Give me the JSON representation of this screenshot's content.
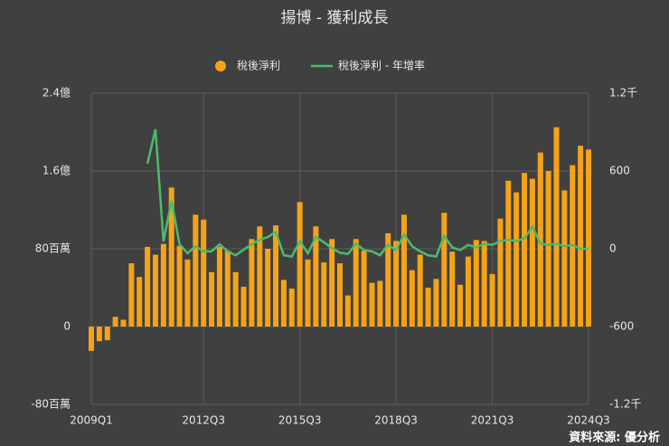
{
  "chart_data": {
    "type": "combo",
    "title": "揚博 - 獲利成長",
    "source": "資料來源: 優分析",
    "categories": [
      "2009Q1",
      null,
      null,
      null,
      null,
      null,
      null,
      null,
      null,
      null,
      null,
      null,
      null,
      null,
      "2012Q3",
      null,
      null,
      null,
      null,
      null,
      null,
      null,
      null,
      null,
      null,
      null,
      "2015Q3",
      null,
      null,
      null,
      null,
      null,
      null,
      null,
      null,
      null,
      null,
      null,
      "2018Q3",
      null,
      null,
      null,
      null,
      null,
      null,
      null,
      null,
      null,
      null,
      null,
      "2021Q3",
      null,
      null,
      null,
      null,
      null,
      null,
      null,
      null,
      null,
      null,
      null,
      "2024Q3"
    ],
    "series": [
      {
        "name": "稅後淨利",
        "type": "bar",
        "axis": "y",
        "color": "#f5a31a",
        "values": [
          -0.25,
          -0.15,
          -0.14,
          0.1,
          0.07,
          0.65,
          0.51,
          0.82,
          0.74,
          0.85,
          1.43,
          0.83,
          0.69,
          1.15,
          1.1,
          0.56,
          0.82,
          0.78,
          0.56,
          0.41,
          0.9,
          1.03,
          0.8,
          1.04,
          0.48,
          0.39,
          1.28,
          0.69,
          1.03,
          0.66,
          0.9,
          0.65,
          0.32,
          0.9,
          0.78,
          0.45,
          0.47,
          0.96,
          0.88,
          1.15,
          0.58,
          0.74,
          0.4,
          0.49,
          1.17,
          0.77,
          0.43,
          0.72,
          0.89,
          0.88,
          0.54,
          1.11,
          1.5,
          1.38,
          1.58,
          1.52,
          1.79,
          1.6,
          2.05,
          1.4,
          1.66,
          1.86,
          1.82
        ]
      },
      {
        "name": "稅後淨利 - 年增率",
        "type": "line",
        "axis": "y2",
        "color": "#4cbb6c",
        "values": [
          null,
          null,
          null,
          null,
          null,
          null,
          null,
          656,
          921,
          56,
          370,
          35,
          -35,
          20,
          -20,
          -20,
          35,
          -20,
          -50,
          -7,
          35,
          70,
          90,
          130,
          -50,
          -60,
          60,
          -35,
          90,
          50,
          5,
          -30,
          -40,
          40,
          -10,
          -20,
          -50,
          30,
          -10,
          110,
          20,
          -20,
          -50,
          -60,
          100,
          10,
          -10,
          30,
          10,
          40,
          30,
          60,
          70,
          60,
          80,
          170,
          40,
          30,
          40,
          20,
          30,
          0,
          0
        ]
      }
    ],
    "ylim": [
      -0.8,
      2.4
    ],
    "yticks": [
      {
        "value": -0.8,
        "label": "-80百萬"
      },
      0,
      {
        "value": 0.8,
        "label": "80百萬"
      },
      {
        "value": 1.6,
        "label": "1.6億"
      },
      {
        "value": 2.4,
        "label": "2.4億"
      }
    ],
    "y2lim": [
      -1200,
      1200
    ],
    "y2ticks": [
      {
        "value": -1200,
        "label": "-1.2千"
      },
      -600,
      0,
      600,
      {
        "value": 1200,
        "label": "1.2千"
      }
    ],
    "grid": true
  }
}
